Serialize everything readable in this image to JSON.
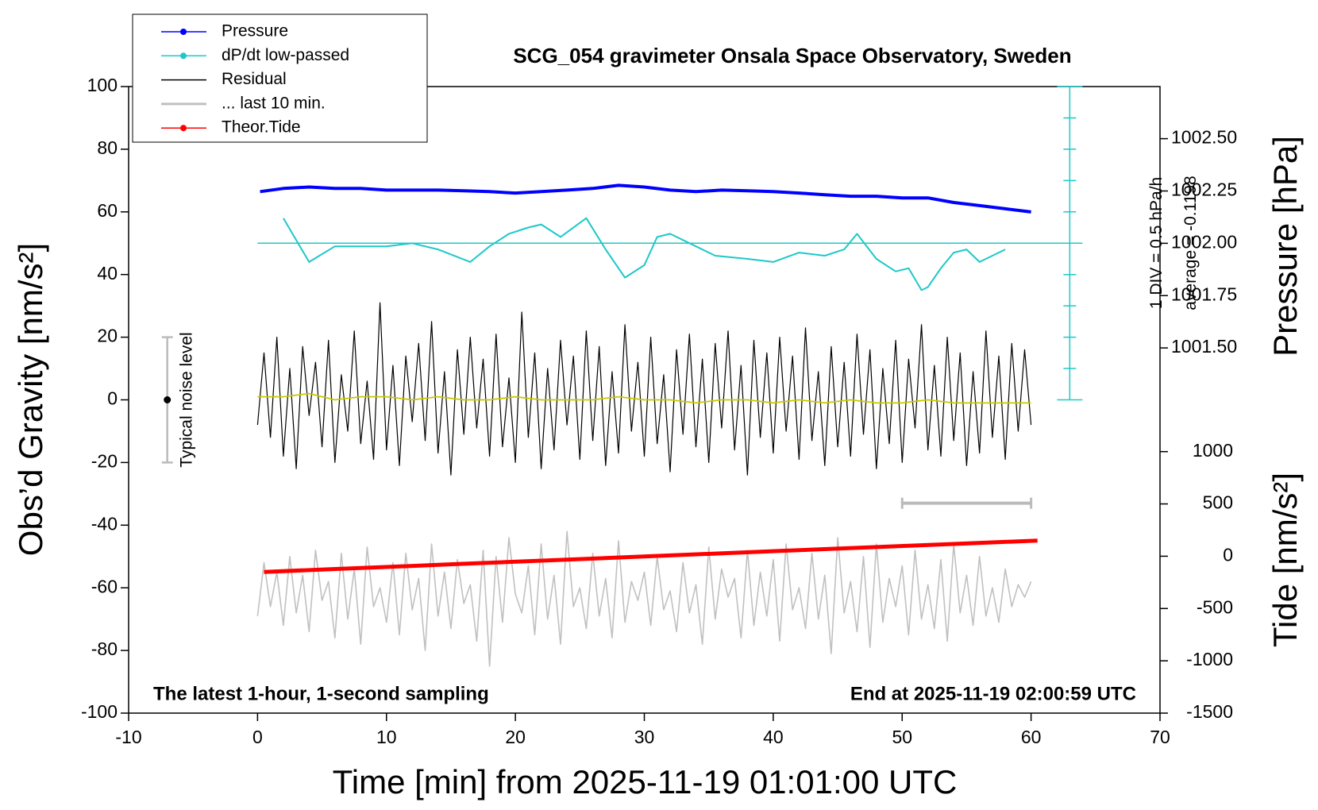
{
  "chart_data": {
    "type": "line",
    "title": "SCG_054 gravimeter Onsala Space Observatory, Sweden",
    "x_label": "Time [min] from 2025-11-19 01:01:00 UTC",
    "y_label": "Obs’d Gravity [nm/s²]",
    "y2_label": "Pressure [hPa]",
    "y3_label": "Tide [nm/s²]",
    "xlim": [
      -10,
      70
    ],
    "xticks": [
      -10,
      0,
      10,
      20,
      30,
      40,
      50,
      60,
      70
    ],
    "ylim": [
      -100,
      100
    ],
    "yticks": [
      -100,
      -80,
      -60,
      -40,
      -20,
      0,
      20,
      40,
      60,
      80,
      100
    ],
    "y2lim": [
      999.755,
      1002.749
    ],
    "y2ticks": [
      {
        "value": 1001.5,
        "label": "1001.50"
      },
      {
        "value": 1001.75,
        "label": "1001.75"
      },
      {
        "value": 1002,
        "label": "1002.00"
      },
      {
        "value": 1002.25,
        "label": "1002.25"
      },
      {
        "value": 1002.5,
        "label": "1002.50"
      }
    ],
    "y3lim": [
      -1500,
      4490
    ],
    "y3ticks": [
      -1500,
      -1000,
      -500,
      0,
      500,
      1000
    ],
    "legend": "upper left outside",
    "series": [
      {
        "name": "Pressure",
        "color": "#0000ff",
        "axis": "y2",
        "x": [
          0.2,
          2,
          4,
          6,
          8,
          10,
          12,
          14,
          16,
          18,
          20,
          22,
          24,
          26,
          28,
          30,
          32,
          34,
          36,
          38,
          40,
          42,
          44,
          46,
          48,
          50,
          52,
          54,
          56,
          58,
          60
        ],
        "values": [
          1002.247,
          1002.262,
          1002.269,
          1002.262,
          1002.262,
          1002.254,
          1002.254,
          1002.254,
          1002.251,
          1002.247,
          1002.24,
          1002.247,
          1002.254,
          1002.262,
          1002.277,
          1002.269,
          1002.254,
          1002.247,
          1002.254,
          1002.251,
          1002.247,
          1002.24,
          1002.232,
          1002.225,
          1002.225,
          1002.217,
          1002.217,
          1002.195,
          1002.18,
          1002.165,
          1002.15
        ]
      },
      {
        "name": "dP/dt low-passed",
        "color": "#1ec8c8",
        "x": [
          2,
          4,
          6,
          8,
          10,
          12,
          14,
          16.5,
          18,
          19.5,
          21,
          22,
          23.5,
          25.5,
          27,
          28.5,
          30,
          31,
          32,
          34,
          35.5,
          38,
          40,
          42,
          44,
          45.5,
          46.5,
          48,
          49.5,
          50.5,
          51.5,
          52,
          53,
          54,
          55,
          56,
          57,
          58
        ],
        "values": [
          58,
          44,
          49,
          49,
          49,
          50,
          48,
          44,
          49,
          53,
          55,
          56,
          52,
          58,
          48,
          39,
          43,
          52,
          53,
          49,
          46,
          45,
          44,
          47,
          46,
          48,
          53,
          45,
          41,
          42,
          35,
          36,
          42,
          47,
          48,
          44,
          46,
          48
        ]
      },
      {
        "name": "Residual",
        "color": "#000000",
        "x": [
          0,
          0.5,
          1,
          1.5,
          2,
          2.5,
          3,
          3.5,
          4,
          4.5,
          5,
          5.5,
          6,
          6.5,
          7,
          7.5,
          8,
          8.5,
          9,
          9.5,
          10,
          10.5,
          11,
          11.5,
          12,
          12.5,
          13,
          13.5,
          14,
          14.5,
          15,
          15.5,
          16,
          16.5,
          17,
          17.5,
          18,
          18.5,
          19,
          19.5,
          20,
          20.5,
          21,
          21.5,
          22,
          22.5,
          23,
          23.5,
          24,
          24.5,
          25,
          25.5,
          26,
          26.5,
          27,
          27.5,
          28,
          28.5,
          29,
          29.5,
          30,
          30.5,
          31,
          31.5,
          32,
          32.5,
          33,
          33.5,
          34,
          34.5,
          35,
          35.5,
          36,
          36.5,
          37,
          37.5,
          38,
          38.5,
          39,
          39.5,
          40,
          40.5,
          41,
          41.5,
          42,
          42.5,
          43,
          43.5,
          44,
          44.5,
          45,
          45.5,
          46,
          46.5,
          47,
          47.5,
          48,
          48.5,
          49,
          49.5,
          50,
          50.5,
          51,
          51.5,
          52,
          52.5,
          53,
          53.5,
          54,
          54.5,
          55,
          55.5,
          56,
          56.5,
          57,
          57.5,
          58,
          58.5,
          59,
          59.5,
          60
        ],
        "values": [
          -8,
          15,
          -12,
          20,
          -18,
          10,
          -22,
          17,
          -5,
          12,
          -15,
          19,
          -20,
          8,
          -10,
          22,
          -14,
          6,
          -19,
          31,
          -16,
          11,
          -21,
          14,
          -7,
          18,
          -13,
          25,
          -17,
          9,
          -24,
          16,
          -11,
          20,
          -9,
          13,
          -18,
          21,
          -15,
          7,
          -20,
          28,
          -12,
          15,
          -22,
          10,
          -16,
          19,
          -8,
          14,
          -19,
          22,
          -13,
          17,
          -21,
          9,
          -17,
          24,
          -10,
          12,
          -18,
          20,
          -14,
          8,
          -23,
          16,
          -11,
          21,
          -15,
          13,
          -20,
          18,
          -9,
          22,
          -16,
          11,
          -24,
          19,
          -12,
          15,
          -17,
          20,
          -10,
          14,
          -19,
          23,
          -13,
          9,
          -21,
          17,
          -15,
          12,
          -18,
          21,
          -11,
          16,
          -22,
          10,
          -14,
          19,
          -20,
          13,
          -9,
          24,
          -16,
          11,
          -18,
          20,
          -13,
          15,
          -21,
          9,
          -17,
          22,
          -12,
          14,
          -19,
          18,
          -10,
          16,
          -8
        ]
      },
      {
        "name": "... last 10 min.",
        "color": "#c0c0c0",
        "x": [
          0,
          0.5,
          1,
          1.5,
          2,
          2.5,
          3,
          3.5,
          4,
          4.5,
          5,
          5.5,
          6,
          6.5,
          7,
          7.5,
          8,
          8.5,
          9,
          9.5,
          10,
          10.5,
          11,
          11.5,
          12,
          12.5,
          13,
          13.5,
          14,
          14.5,
          15,
          15.5,
          16,
          16.5,
          17,
          17.5,
          18,
          18.5,
          19,
          19.5,
          20,
          20.5,
          21,
          21.5,
          22,
          22.5,
          23,
          23.5,
          24,
          24.5,
          25,
          25.5,
          26,
          26.5,
          27,
          27.5,
          28,
          28.5,
          29,
          29.5,
          30,
          30.5,
          31,
          31.5,
          32,
          32.5,
          33,
          33.5,
          34,
          34.5,
          35,
          35.5,
          36,
          36.5,
          37,
          37.5,
          38,
          38.5,
          39,
          39.5,
          40,
          40.5,
          41,
          41.5,
          42,
          42.5,
          43,
          43.5,
          44,
          44.5,
          45,
          45.5,
          46,
          46.5,
          47,
          47.5,
          48,
          48.5,
          49,
          49.5,
          50,
          50.5,
          51,
          51.5,
          52,
          52.5,
          53,
          53.5,
          54,
          54.5,
          55,
          55.5,
          56,
          56.5,
          57,
          57.5,
          58,
          58.5,
          59,
          59.5,
          60
        ],
        "values": [
          -69,
          -52,
          -66,
          -55,
          -72,
          -50,
          -68,
          -56,
          -74,
          -48,
          -64,
          -58,
          -76,
          -49,
          -70,
          -54,
          -78,
          -47,
          -66,
          -60,
          -71,
          -52,
          -75,
          -49,
          -67,
          -57,
          -80,
          -46,
          -69,
          -55,
          -73,
          -51,
          -65,
          -59,
          -77,
          -48,
          -85,
          -50,
          -71,
          -44,
          -62,
          -68,
          -53,
          -75,
          -46,
          -70,
          -56,
          -78,
          -42,
          -66,
          -60,
          -73,
          -49,
          -69,
          -57,
          -76,
          -45,
          -71,
          -58,
          -64,
          -55,
          -72,
          -50,
          -67,
          -61,
          -74,
          -52,
          -68,
          -59,
          -78,
          -47,
          -70,
          -54,
          -63,
          -57,
          -76,
          -48,
          -72,
          -55,
          -69,
          -51,
          -77,
          -46,
          -67,
          -60,
          -73,
          -49,
          -70,
          -56,
          -81,
          -44,
          -68,
          -58,
          -74,
          -50,
          -79,
          -46,
          -71,
          -57,
          -66,
          -53,
          -75,
          -48,
          -70,
          -59,
          -73,
          -51,
          -77,
          -46,
          -68,
          -56,
          -72,
          -50,
          -69,
          -60,
          -71,
          -54,
          -66,
          -59,
          -63,
          -58
        ]
      },
      {
        "name": "Theor.Tide",
        "color": "#ff0000",
        "axis": "y3",
        "x": [
          0.5,
          5.5,
          10.5,
          15.5,
          20.5,
          25.5,
          30.5,
          35.5,
          40.5,
          45.5,
          50.5,
          55.5,
          60.5
        ],
        "values": [
          -150,
          -125,
          -100,
          -75,
          -50,
          -25,
          0,
          25,
          50,
          75,
          100,
          125,
          150
        ]
      },
      {
        "color": "#c8c800",
        "x": [
          0,
          2,
          4,
          6,
          8,
          10,
          12,
          14,
          16,
          18,
          20,
          22,
          24,
          26,
          28,
          30,
          32,
          34,
          36,
          38,
          40,
          42,
          44,
          46,
          48,
          50,
          52,
          54,
          56,
          58,
          60
        ],
        "values": [
          1,
          1,
          2,
          0,
          1,
          1,
          0,
          1,
          0,
          0,
          1,
          0,
          0,
          0,
          1,
          0,
          0,
          -1,
          0,
          0,
          -1,
          0,
          -1,
          0,
          -1,
          -1,
          0,
          -1,
          -1,
          -1,
          -1
        ]
      }
    ],
    "dpdt_scale": {
      "x": 63,
      "lim": [
        0,
        100
      ],
      "ticks": [
        0,
        10,
        20,
        30,
        40,
        50,
        60,
        70,
        80,
        90,
        100
      ],
      "average_level": 50,
      "label": "1 DIV = 0.5 hPa/h",
      "average_label": "average = -0.1198"
    },
    "noise_level": {
      "x": -7,
      "value": 0,
      "error": 20,
      "label": "Typical noise level"
    },
    "last_10min_bar": {
      "x": [
        50,
        60
      ],
      "y": -33
    },
    "annotations": [
      "The latest 1-hour, 1-second sampling",
      "End at 2025-11-19 02:00:59 UTC"
    ]
  }
}
